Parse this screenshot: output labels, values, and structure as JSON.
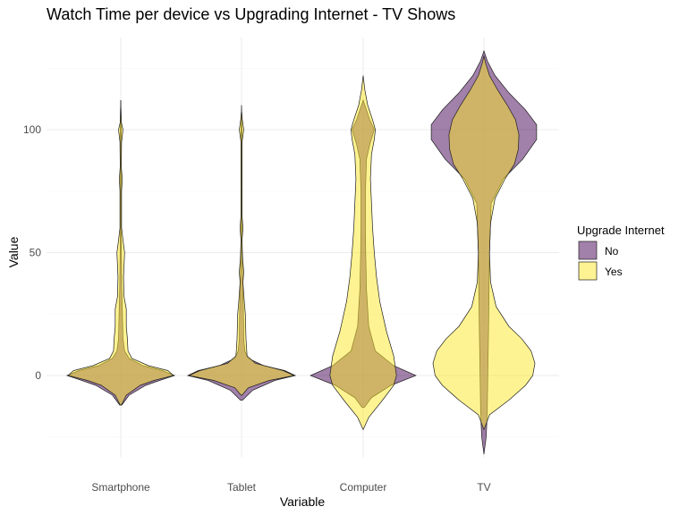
{
  "chart_data": {
    "type": "violin",
    "title": "Watch Time per device vs Upgrading Internet - TV Shows",
    "xlabel": "Variable",
    "ylabel": "Value",
    "categories": [
      "Smartphone",
      "Tablet",
      "Computer",
      "TV"
    ],
    "y_ticks": [
      0,
      50,
      100
    ],
    "ylim": [
      -30,
      135
    ],
    "grid": true,
    "legend": {
      "title": "Upgrade Internet",
      "position": "right",
      "items": [
        {
          "label": "No",
          "color": "#440154"
        },
        {
          "label": "Yes",
          "color": "#fde725"
        }
      ]
    },
    "series": [
      {
        "name": "No",
        "color": "#440154",
        "violins": [
          {
            "category": "Smartphone",
            "ymin": -12,
            "ymax": 112,
            "profile": [
              [
                -12,
                0.02
              ],
              [
                -8,
                0.15
              ],
              [
                -4,
                0.45
              ],
              [
                -2,
                0.7
              ],
              [
                0,
                0.97
              ],
              [
                2,
                0.75
              ],
              [
                4,
                0.4
              ],
              [
                7,
                0.15
              ],
              [
                10,
                0.07
              ],
              [
                15,
                0.04
              ],
              [
                25,
                0.03
              ],
              [
                35,
                0.02
              ],
              [
                50,
                0.012
              ],
              [
                60,
                0.008
              ],
              [
                80,
                0.008
              ],
              [
                100,
                0.01
              ],
              [
                112,
                0
              ]
            ]
          },
          {
            "category": "Tablet",
            "ymin": -10,
            "ymax": 110,
            "profile": [
              [
                -10,
                0.02
              ],
              [
                -6,
                0.2
              ],
              [
                -2,
                0.6
              ],
              [
                0,
                0.97
              ],
              [
                2,
                0.78
              ],
              [
                4,
                0.4
              ],
              [
                7,
                0.12
              ],
              [
                10,
                0.06
              ],
              [
                15,
                0.04
              ],
              [
                25,
                0.035
              ],
              [
                35,
                0.025
              ],
              [
                50,
                0.012
              ],
              [
                60,
                0.008
              ],
              [
                80,
                0.008
              ],
              [
                100,
                0.01
              ],
              [
                110,
                0
              ]
            ]
          },
          {
            "category": "Computer",
            "ymin": -13,
            "ymax": 112,
            "profile": [
              [
                -13,
                0.02
              ],
              [
                -9,
                0.15
              ],
              [
                -4,
                0.5
              ],
              [
                0,
                0.95
              ],
              [
                4,
                0.55
              ],
              [
                10,
                0.22
              ],
              [
                20,
                0.1
              ],
              [
                35,
                0.06
              ],
              [
                50,
                0.045
              ],
              [
                60,
                0.04
              ],
              [
                75,
                0.04
              ],
              [
                88,
                0.06
              ],
              [
                94,
                0.12
              ],
              [
                100,
                0.2
              ],
              [
                104,
                0.12
              ],
              [
                112,
                0
              ]
            ]
          },
          {
            "category": "TV",
            "ymin": -32,
            "ymax": 132,
            "profile": [
              [
                -32,
                0
              ],
              [
                -25,
                0.04
              ],
              [
                -15,
                0.06
              ],
              [
                0,
                0.07
              ],
              [
                15,
                0.08
              ],
              [
                30,
                0.09
              ],
              [
                50,
                0.1
              ],
              [
                70,
                0.13
              ],
              [
                80,
                0.35
              ],
              [
                88,
                0.7
              ],
              [
                96,
                0.95
              ],
              [
                102,
                0.95
              ],
              [
                108,
                0.75
              ],
              [
                115,
                0.45
              ],
              [
                122,
                0.2
              ],
              [
                128,
                0.06
              ],
              [
                132,
                0
              ]
            ]
          }
        ]
      },
      {
        "name": "Yes",
        "color": "#fde725",
        "violins": [
          {
            "category": "Smartphone",
            "ymin": -12,
            "ymax": 112,
            "profile": [
              [
                -12,
                0.01
              ],
              [
                -8,
                0.1
              ],
              [
                -4,
                0.35
              ],
              [
                -2,
                0.6
              ],
              [
                0,
                0.95
              ],
              [
                2,
                0.85
              ],
              [
                4,
                0.5
              ],
              [
                7,
                0.2
              ],
              [
                10,
                0.13
              ],
              [
                15,
                0.12
              ],
              [
                20,
                0.1
              ],
              [
                27,
                0.1
              ],
              [
                32,
                0.06
              ],
              [
                40,
                0.05
              ],
              [
                45,
                0.06
              ],
              [
                50,
                0.07
              ],
              [
                55,
                0.04
              ],
              [
                60,
                0.015
              ],
              [
                75,
                0.015
              ],
              [
                80,
                0.025
              ],
              [
                85,
                0.01
              ],
              [
                95,
                0.015
              ],
              [
                100,
                0.04
              ],
              [
                103,
                0.01
              ],
              [
                112,
                0
              ]
            ]
          },
          {
            "category": "Tablet",
            "ymin": -8,
            "ymax": 108,
            "profile": [
              [
                -8,
                0.01
              ],
              [
                -5,
                0.12
              ],
              [
                -2,
                0.5
              ],
              [
                0,
                0.95
              ],
              [
                2,
                0.75
              ],
              [
                5,
                0.25
              ],
              [
                8,
                0.1
              ],
              [
                15,
                0.08
              ],
              [
                25,
                0.07
              ],
              [
                30,
                0.05
              ],
              [
                38,
                0.025
              ],
              [
                42,
                0.04
              ],
              [
                48,
                0.02
              ],
              [
                55,
                0.01
              ],
              [
                60,
                0.025
              ],
              [
                65,
                0.01
              ],
              [
                95,
                0.01
              ],
              [
                100,
                0.04
              ],
              [
                104,
                0.015
              ],
              [
                108,
                0
              ]
            ]
          },
          {
            "category": "Computer",
            "ymin": -22,
            "ymax": 122,
            "profile": [
              [
                -22,
                0
              ],
              [
                -17,
                0.1
              ],
              [
                -10,
                0.35
              ],
              [
                -4,
                0.55
              ],
              [
                0,
                0.6
              ],
              [
                8,
                0.55
              ],
              [
                18,
                0.42
              ],
              [
                30,
                0.3
              ],
              [
                40,
                0.24
              ],
              [
                50,
                0.2
              ],
              [
                60,
                0.17
              ],
              [
                70,
                0.15
              ],
              [
                80,
                0.13
              ],
              [
                90,
                0.15
              ],
              [
                96,
                0.2
              ],
              [
                100,
                0.22
              ],
              [
                104,
                0.17
              ],
              [
                110,
                0.08
              ],
              [
                116,
                0.03
              ],
              [
                122,
                0
              ]
            ]
          },
          {
            "category": "TV",
            "ymin": -22,
            "ymax": 130,
            "profile": [
              [
                -22,
                0
              ],
              [
                -16,
                0.1
              ],
              [
                -10,
                0.45
              ],
              [
                -4,
                0.75
              ],
              [
                0,
                0.88
              ],
              [
                5,
                0.92
              ],
              [
                10,
                0.85
              ],
              [
                15,
                0.68
              ],
              [
                20,
                0.45
              ],
              [
                28,
                0.22
              ],
              [
                38,
                0.12
              ],
              [
                50,
                0.1
              ],
              [
                62,
                0.12
              ],
              [
                72,
                0.2
              ],
              [
                80,
                0.38
              ],
              [
                86,
                0.55
              ],
              [
                92,
                0.62
              ],
              [
                98,
                0.63
              ],
              [
                104,
                0.57
              ],
              [
                110,
                0.42
              ],
              [
                116,
                0.25
              ],
              [
                122,
                0.1
              ],
              [
                127,
                0.03
              ],
              [
                130,
                0
              ]
            ]
          }
        ]
      }
    ]
  }
}
